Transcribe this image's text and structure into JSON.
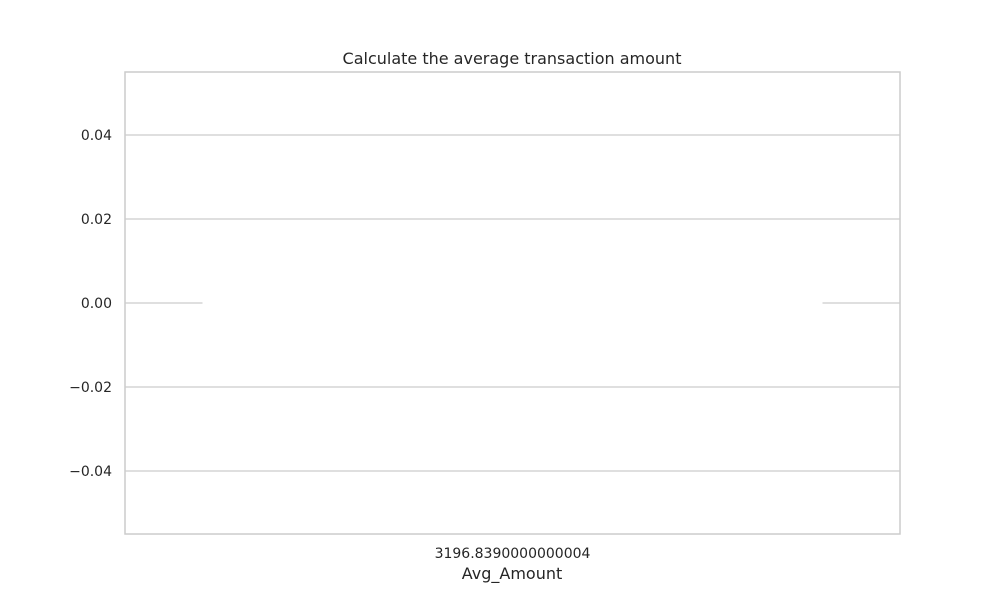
{
  "chart_data": {
    "type": "bar",
    "title": "Calculate the average transaction amount",
    "xlabel": "Avg_Amount",
    "ylabel": "",
    "categories": [
      "3196.8390000000004"
    ],
    "values": [
      0
    ],
    "ylim": [
      -0.055,
      0.055
    ],
    "yticks": [
      0.04,
      0.02,
      0.0,
      -0.02,
      -0.04
    ],
    "ytick_labels": [
      "0.04",
      "0.02",
      "0.00",
      "−0.02",
      "−0.04"
    ],
    "grid": true,
    "bar_color": "#ffffff",
    "grid_color": "#cccccc",
    "frame_color": "#cccccc"
  }
}
